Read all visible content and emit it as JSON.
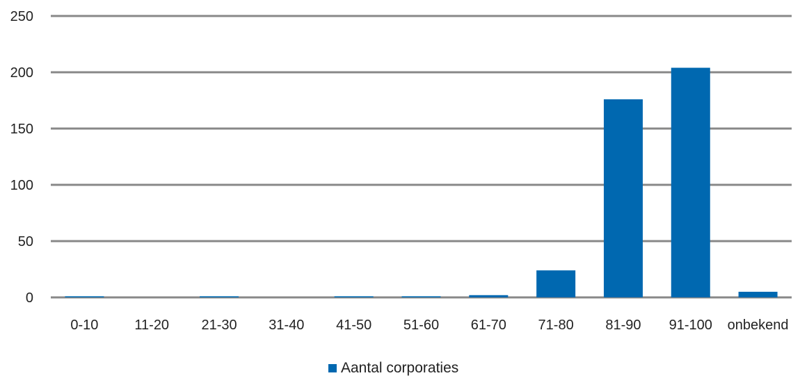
{
  "chart_data": {
    "type": "bar",
    "categories": [
      "0-10",
      "11-20",
      "21-30",
      "31-40",
      "41-50",
      "51-60",
      "61-70",
      "71-80",
      "81-90",
      "91-100",
      "onbekend"
    ],
    "series": [
      {
        "name": "Aantal corporaties",
        "values": [
          1,
          0,
          1,
          0,
          1,
          1,
          2,
          24,
          176,
          204,
          5
        ]
      }
    ],
    "ylim": [
      0,
      250
    ],
    "yticks": [
      0,
      50,
      100,
      150,
      200,
      250
    ],
    "grid": true,
    "legend_position": "bottom",
    "colors": {
      "bar": "#0068b0",
      "grid": "#888888"
    }
  }
}
